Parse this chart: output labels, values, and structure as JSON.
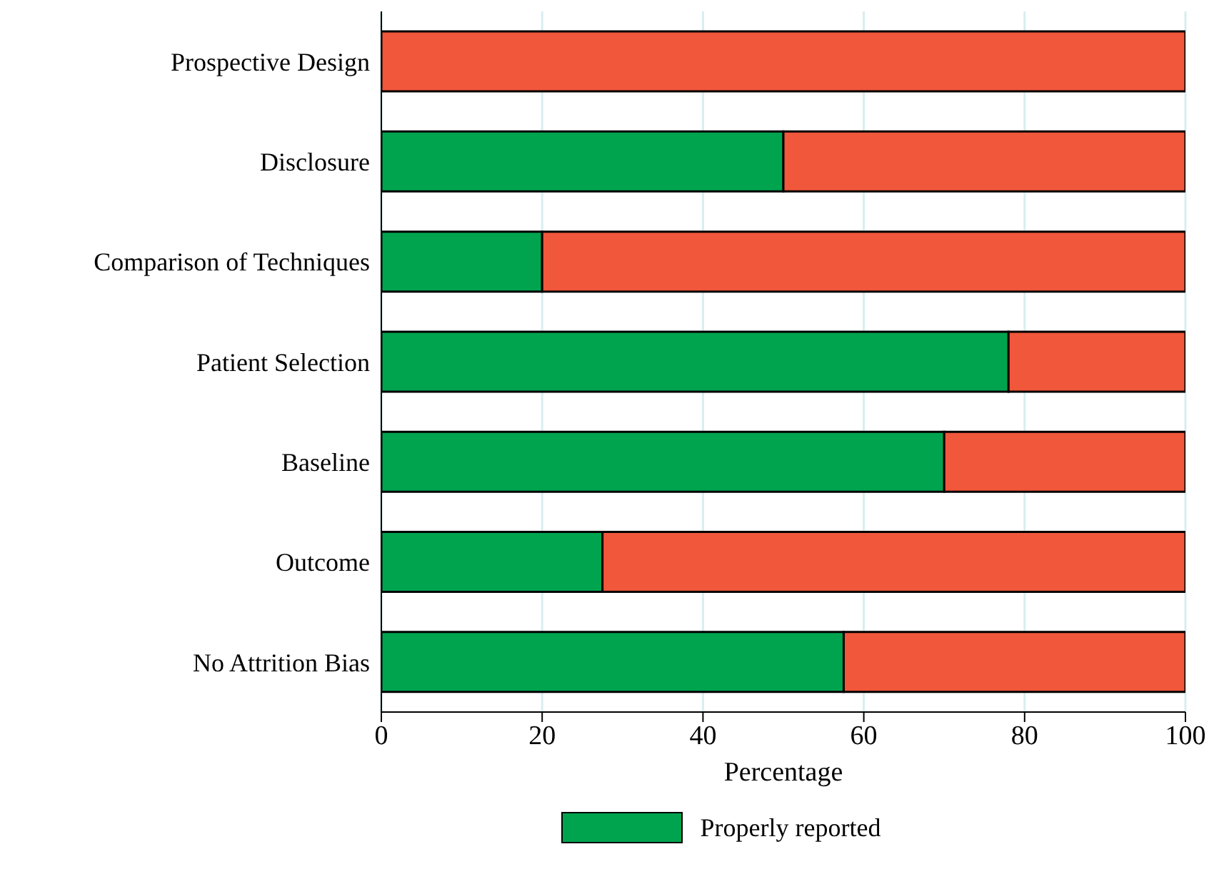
{
  "chart_data": {
    "type": "bar",
    "orientation": "horizontal",
    "stacked": true,
    "xlabel": "Percentage",
    "categories": [
      "Prospective Design",
      "Disclosure",
      "Comparison of Techniques",
      "Patient Selection",
      "Baseline",
      "Outcome",
      "No Attrition Bias"
    ],
    "series": [
      {
        "name": "Properly reported",
        "color": "#00a44f",
        "values": [
          0,
          50,
          20,
          78,
          70,
          27.5,
          57.5
        ]
      },
      {
        "color": "#f0573b",
        "values": [
          100,
          50,
          80,
          22,
          30,
          72.5,
          42.5
        ]
      }
    ],
    "xlim": [
      0,
      100
    ],
    "xticks": [
      0,
      20,
      40,
      60,
      80,
      100
    ],
    "grid": "x",
    "legend": "bottom"
  }
}
